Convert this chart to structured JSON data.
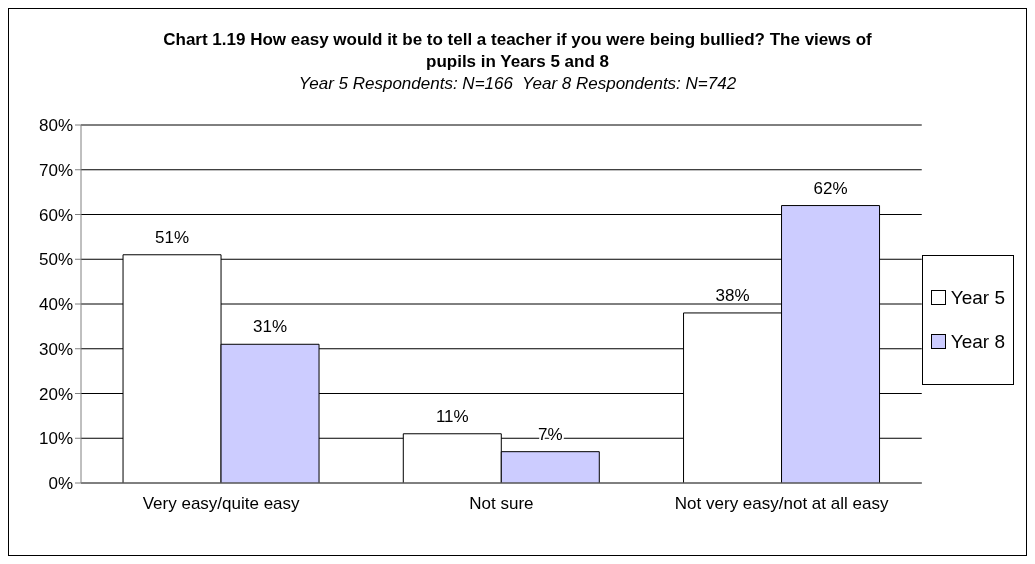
{
  "chart_data": {
    "type": "bar",
    "title": "Chart 1.19 How easy would it be to tell a teacher if you were being bullied? The views of pupils in Years 5 and 8",
    "subtitle": "Year 5 Respondents: N=166  Year 8 Respondents: N=742",
    "categories": [
      "Very easy/quite easy",
      "Not sure",
      "Not very easy/not at all easy"
    ],
    "series": [
      {
        "name": "Year 5",
        "color": "#ffffff",
        "values": [
          51,
          11,
          38
        ],
        "value_labels": [
          "51%",
          "11%",
          "38%"
        ]
      },
      {
        "name": "Year 8",
        "color": "#ccccff",
        "values": [
          31,
          7,
          62
        ],
        "value_labels": [
          "31%",
          "7%",
          "62%"
        ]
      }
    ],
    "ylim": [
      0,
      80
    ],
    "yticks": [
      {
        "value": 0,
        "label": "0%"
      },
      {
        "value": 10,
        "label": "10%"
      },
      {
        "value": 20,
        "label": "20%"
      },
      {
        "value": 30,
        "label": "30%"
      },
      {
        "value": 40,
        "label": "40%"
      },
      {
        "value": 50,
        "label": "50%"
      },
      {
        "value": 60,
        "label": "60%"
      },
      {
        "value": 70,
        "label": "70%"
      },
      {
        "value": 80,
        "label": "80%"
      }
    ],
    "grid": "y",
    "legend": "right"
  }
}
